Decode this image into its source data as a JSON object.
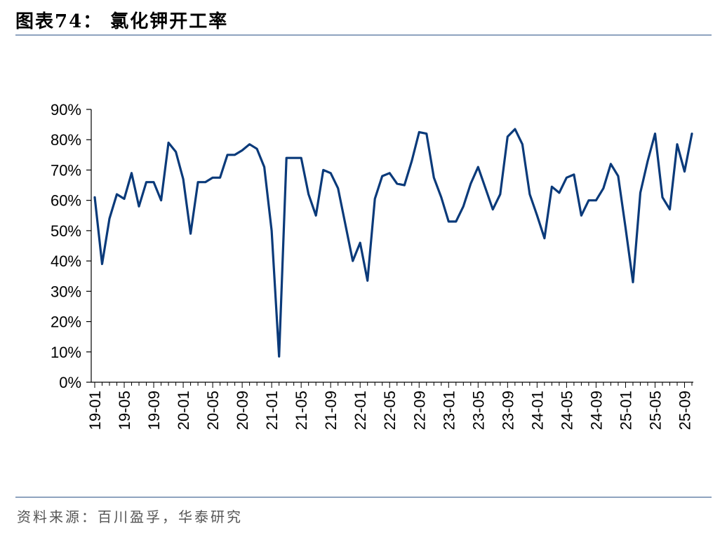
{
  "header": {
    "title": "图表74：  氯化钾开工率"
  },
  "footer": {
    "source": "资料来源：百川盈孚，华泰研究"
  },
  "chart_data": {
    "type": "line",
    "title": "",
    "xlabel": "",
    "ylabel": "",
    "ylim": [
      0,
      90
    ],
    "ytick_labels": [
      "0%",
      "10%",
      "20%",
      "30%",
      "40%",
      "50%",
      "60%",
      "70%",
      "80%",
      "90%"
    ],
    "xtick_labels": [
      "19-01",
      "19-05",
      "19-09",
      "20-01",
      "20-05",
      "20-09",
      "21-01",
      "21-05",
      "21-09",
      "22-01",
      "22-05",
      "22-09",
      "23-01",
      "23-05",
      "23-09",
      "24-01",
      "24-05",
      "24-09",
      "25-01",
      "25-05",
      "25-09"
    ],
    "grid": false,
    "legend": "none",
    "line_color": "#0a3a7a",
    "series": [
      {
        "values": [
          61,
          39,
          54,
          62,
          60.5,
          69,
          58,
          66,
          66,
          60,
          79,
          76,
          67,
          49,
          66,
          66,
          67.5,
          67.5,
          75,
          75,
          76.5,
          78.5,
          77,
          71,
          50,
          8.5,
          74,
          74,
          74,
          62,
          55,
          70,
          69,
          64,
          52,
          40,
          46,
          33.5,
          60.5,
          68,
          69,
          65.5,
          65,
          73,
          82.5,
          82,
          67.5,
          61,
          53,
          53,
          58,
          65.5,
          71,
          64,
          57,
          62,
          81,
          83.5,
          78.5,
          62,
          55,
          47.5,
          64.5,
          62.5,
          67.5,
          68.5,
          55,
          60,
          60,
          64,
          72,
          68,
          51,
          33,
          62.5,
          73,
          82,
          61,
          57,
          78.5,
          69.5,
          82
        ]
      }
    ]
  }
}
